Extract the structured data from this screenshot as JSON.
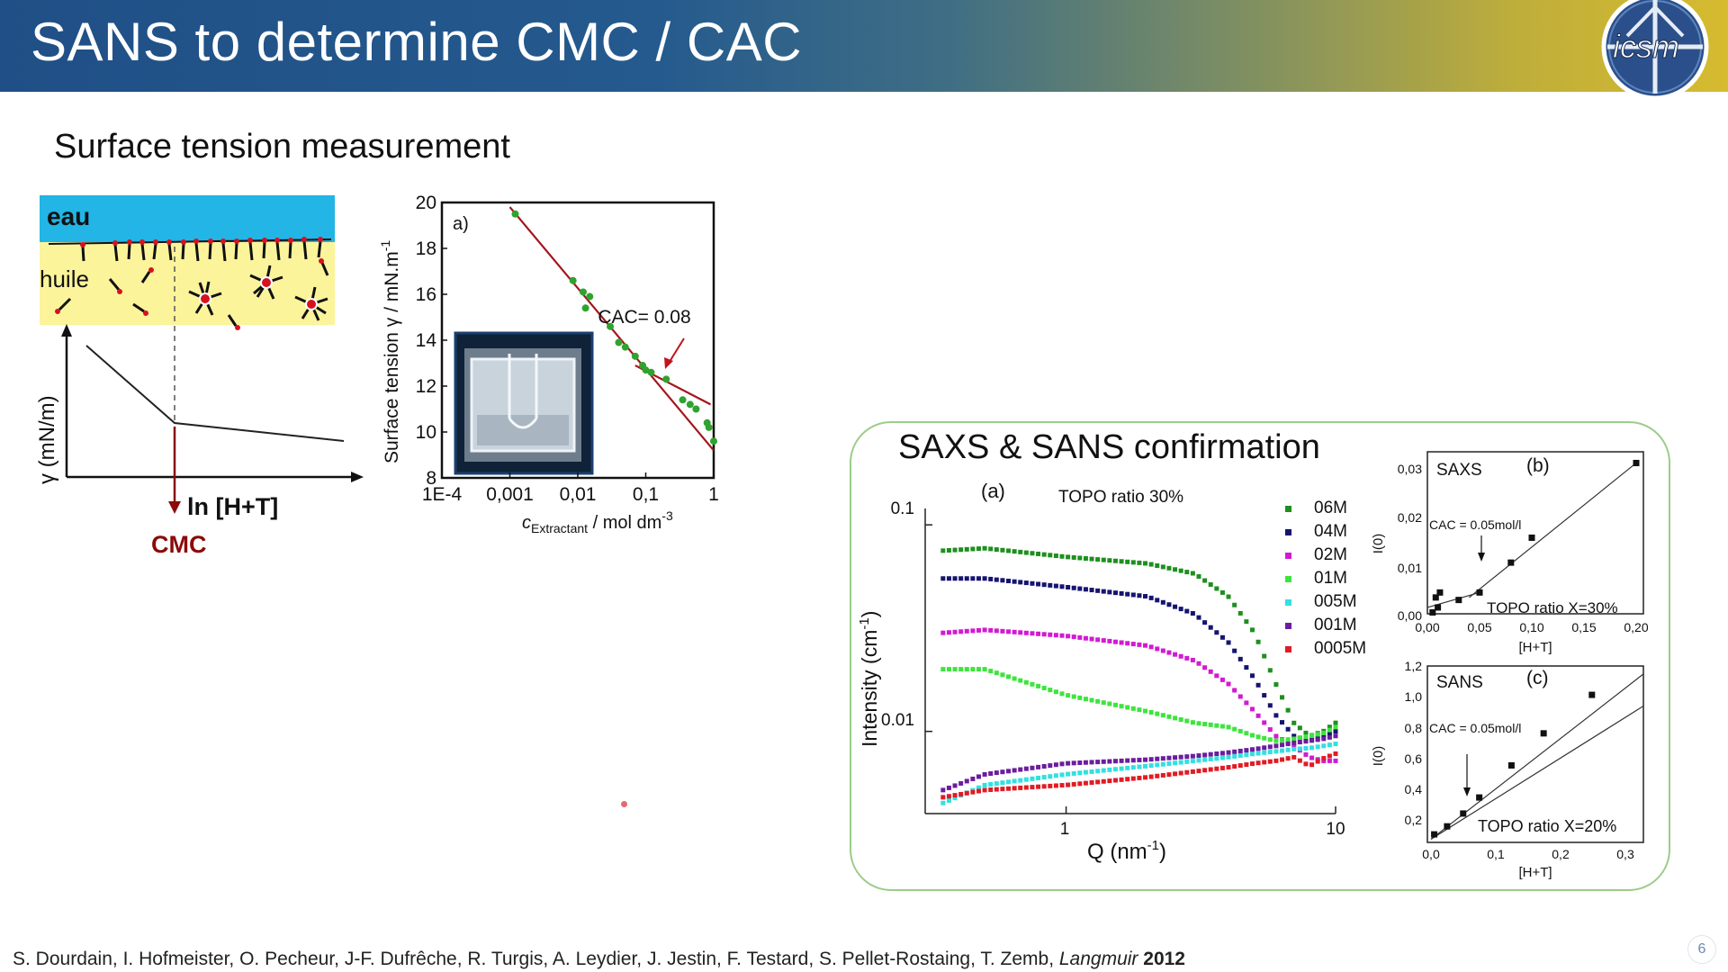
{
  "header": {
    "title": "SANS to determine CMC / CAC",
    "logo_text": "icsm"
  },
  "subtitle": "Surface tension measurement",
  "schematic": {
    "water_label": "eau",
    "oil_label": "huile",
    "y_axis_label": "γ (mN/m)",
    "x_axis_label": "ln [H+T]",
    "cmc_label": "CMC",
    "colors": {
      "water": "#22b5e6",
      "oil": "#fbf49a",
      "surfactant": "#d6121f",
      "arrow": "#8b0a0a"
    }
  },
  "surface_tension_plot": {
    "panel_label": "a)",
    "ylabel": "Surface tension γ / mN.m",
    "ylabel_sup": "-1",
    "xlabel_c": "c",
    "xlabel_sub": "Extractant",
    "xlabel_unit": " / mol dm",
    "xlabel_sup": "-3",
    "y_ticks": [
      "20",
      "18",
      "16",
      "14",
      "12",
      "10",
      "8"
    ],
    "x_ticks": [
      "1E-4",
      "0,001",
      "0,01",
      "0,1",
      "1"
    ],
    "annotation": "CAC= 0.08"
  },
  "confirmation": {
    "title": "SAXS & SANS confirmation"
  },
  "sans_plot": {
    "panel_label": "(a)",
    "annotation": "TOPO ratio 30%",
    "ylabel": "Intensity (cm",
    "ylabel_sup": "-1",
    "ylabel_close": ")",
    "xlabel": "Q (nm",
    "xlabel_sup": "-1",
    "xlabel_close": ")",
    "y_ticks": [
      "0.1",
      "0.01"
    ],
    "x_ticks": [
      "1",
      "10"
    ]
  },
  "saxs_inset": {
    "title": "SAXS",
    "panel_label": "(b)",
    "ylabel": "I(0)",
    "xlabel": "[H+T]",
    "cac_text": "CAC = 0.05mol/l",
    "ratio_text": "TOPO ratio X=30%",
    "y_ticks": [
      "0,03",
      "0,02",
      "0,01",
      "0,00"
    ],
    "x_ticks": [
      "0,00",
      "0,05",
      "0,10",
      "0,15",
      "0,20"
    ]
  },
  "sans_inset": {
    "title": "SANS",
    "panel_label": "(c)",
    "ylabel": "I(0)",
    "xlabel": "[H+T]",
    "cac_text": "CAC = 0.05mol/l",
    "ratio_text": "TOPO ratio X=20%",
    "y_ticks": [
      "1,2",
      "1,0",
      "0,8",
      "0,6",
      "0,4",
      "0,2"
    ],
    "x_ticks": [
      "0,0",
      "0,1",
      "0,2",
      "0,3"
    ]
  },
  "citation": {
    "authors": "S. Dourdain, I. Hofmeister, O. Pecheur, J-F. Dufrêche, R. Turgis, A. Leydier, J. Jestin, F. Testard, S. Pellet-Rostaing, T. Zemb, ",
    "journal": "Langmuir",
    "year": " 2012"
  },
  "page_number": "6",
  "chart_data": [
    {
      "id": "surface_tension",
      "type": "scatter",
      "x_scale": "log",
      "xlim": [
        0.0001,
        1
      ],
      "ylim": [
        8,
        20
      ],
      "cac": 0.08,
      "points": [
        {
          "x": 0.0012,
          "y": 19.5
        },
        {
          "x": 0.0085,
          "y": 16.6
        },
        {
          "x": 0.012,
          "y": 16.1
        },
        {
          "x": 0.015,
          "y": 15.9
        },
        {
          "x": 0.013,
          "y": 15.4
        },
        {
          "x": 0.03,
          "y": 14.6
        },
        {
          "x": 0.04,
          "y": 13.9
        },
        {
          "x": 0.05,
          "y": 13.7
        },
        {
          "x": 0.07,
          "y": 13.3
        },
        {
          "x": 0.09,
          "y": 12.9
        },
        {
          "x": 0.1,
          "y": 12.7
        },
        {
          "x": 0.12,
          "y": 12.6
        },
        {
          "x": 0.2,
          "y": 12.3
        },
        {
          "x": 0.35,
          "y": 11.4
        },
        {
          "x": 0.45,
          "y": 11.2
        },
        {
          "x": 0.55,
          "y": 11.0
        },
        {
          "x": 0.8,
          "y": 10.4
        },
        {
          "x": 0.85,
          "y": 10.2
        },
        {
          "x": 1.0,
          "y": 9.6
        }
      ],
      "fit_lines": [
        {
          "x": [
            0.001,
            1.0
          ],
          "y": [
            19.8,
            9.2
          ]
        },
        {
          "x": [
            0.07,
            0.9
          ],
          "y": [
            12.9,
            11.2
          ]
        }
      ]
    },
    {
      "id": "sans_curves",
      "type": "scatter",
      "x_scale": "log",
      "y_scale": "log",
      "xlim": [
        0.3,
        10
      ],
      "ylim": [
        0.004,
        0.12
      ],
      "series": [
        {
          "name": "06M",
          "color": "#1e8f1e",
          "q": [
            0.35,
            0.5,
            1,
            2,
            3,
            4,
            5,
            6,
            7,
            8,
            9,
            10
          ],
          "i": [
            0.075,
            0.077,
            0.07,
            0.065,
            0.058,
            0.045,
            0.03,
            0.017,
            0.011,
            0.0095,
            0.01,
            0.011
          ]
        },
        {
          "name": "04M",
          "color": "#161470",
          "q": [
            0.35,
            0.5,
            1,
            2,
            3,
            4,
            5,
            6,
            7,
            8,
            9,
            10
          ],
          "i": [
            0.055,
            0.055,
            0.05,
            0.045,
            0.037,
            0.027,
            0.018,
            0.012,
            0.0095,
            0.009,
            0.0095,
            0.01
          ]
        },
        {
          "name": "02M",
          "color": "#d21ad2",
          "q": [
            0.35,
            0.5,
            1,
            2,
            3,
            4,
            5,
            6,
            7,
            8,
            9,
            10
          ],
          "i": [
            0.03,
            0.031,
            0.029,
            0.026,
            0.022,
            0.017,
            0.0125,
            0.0095,
            0.0085,
            0.0075,
            0.0072,
            0.0072
          ]
        },
        {
          "name": "01M",
          "color": "#3ee43e",
          "q": [
            0.35,
            0.5,
            1,
            2,
            3,
            4,
            5,
            6,
            7,
            8,
            9,
            10
          ],
          "i": [
            0.02,
            0.02,
            0.015,
            0.0125,
            0.011,
            0.0105,
            0.0095,
            0.009,
            0.0092,
            0.0095,
            0.0098,
            0.0105
          ]
        },
        {
          "name": "005M",
          "color": "#33e0e0",
          "q": [
            0.35,
            0.5,
            1,
            2,
            3,
            4,
            5,
            6,
            7,
            8,
            9,
            10
          ],
          "i": [
            0.0045,
            0.0055,
            0.0062,
            0.0068,
            0.0072,
            0.0075,
            0.0078,
            0.008,
            0.0082,
            0.0083,
            0.0085,
            0.0087
          ]
        },
        {
          "name": "001M",
          "color": "#6b1d9e",
          "q": [
            0.35,
            0.5,
            1,
            2,
            3,
            4,
            5,
            6,
            7,
            8,
            9,
            10
          ],
          "i": [
            0.0052,
            0.0062,
            0.007,
            0.0073,
            0.0076,
            0.0079,
            0.0082,
            0.0085,
            0.0088,
            0.009,
            0.0092,
            0.0095
          ]
        },
        {
          "name": "0005M",
          "color": "#e01c24",
          "q": [
            0.35,
            0.5,
            1,
            2,
            3,
            4,
            5,
            6,
            7,
            8,
            9,
            10
          ],
          "i": [
            0.0048,
            0.0052,
            0.0055,
            0.006,
            0.0064,
            0.0067,
            0.007,
            0.0072,
            0.0075,
            0.0068,
            0.0074,
            0.0078
          ]
        }
      ]
    },
    {
      "id": "saxs_i0",
      "type": "scatter",
      "xlim": [
        0,
        0.2
      ],
      "ylim": [
        0,
        0.03
      ],
      "points": [
        {
          "x": 0.005,
          "y": 0.001
        },
        {
          "x": 0.008,
          "y": 0.004
        },
        {
          "x": 0.01,
          "y": 0.002
        },
        {
          "x": 0.012,
          "y": 0.005
        },
        {
          "x": 0.03,
          "y": 0.0035
        },
        {
          "x": 0.05,
          "y": 0.005
        },
        {
          "x": 0.08,
          "y": 0.011
        },
        {
          "x": 0.1,
          "y": 0.016
        },
        {
          "x": 0.2,
          "y": 0.031
        }
      ],
      "fit_lines": [
        {
          "x": [
            0.0,
            0.05
          ],
          "y": [
            0.002,
            0.005
          ]
        },
        {
          "x": [
            0.04,
            0.2
          ],
          "y": [
            0.004,
            0.031
          ]
        }
      ]
    },
    {
      "id": "sans_i0",
      "type": "scatter",
      "xlim": [
        0,
        0.33
      ],
      "ylim": [
        0.1,
        1.2
      ],
      "points": [
        {
          "x": 0.005,
          "y": 0.15
        },
        {
          "x": 0.025,
          "y": 0.2
        },
        {
          "x": 0.05,
          "y": 0.28
        },
        {
          "x": 0.075,
          "y": 0.38
        },
        {
          "x": 0.125,
          "y": 0.58
        },
        {
          "x": 0.175,
          "y": 0.78
        },
        {
          "x": 0.25,
          "y": 1.02
        }
      ],
      "fit_lines": [
        {
          "x": [
            0.0,
            0.33
          ],
          "y": [
            0.12,
            1.15
          ]
        },
        {
          "x": [
            0.0,
            0.33
          ],
          "y": [
            0.12,
            0.95
          ]
        }
      ]
    }
  ]
}
